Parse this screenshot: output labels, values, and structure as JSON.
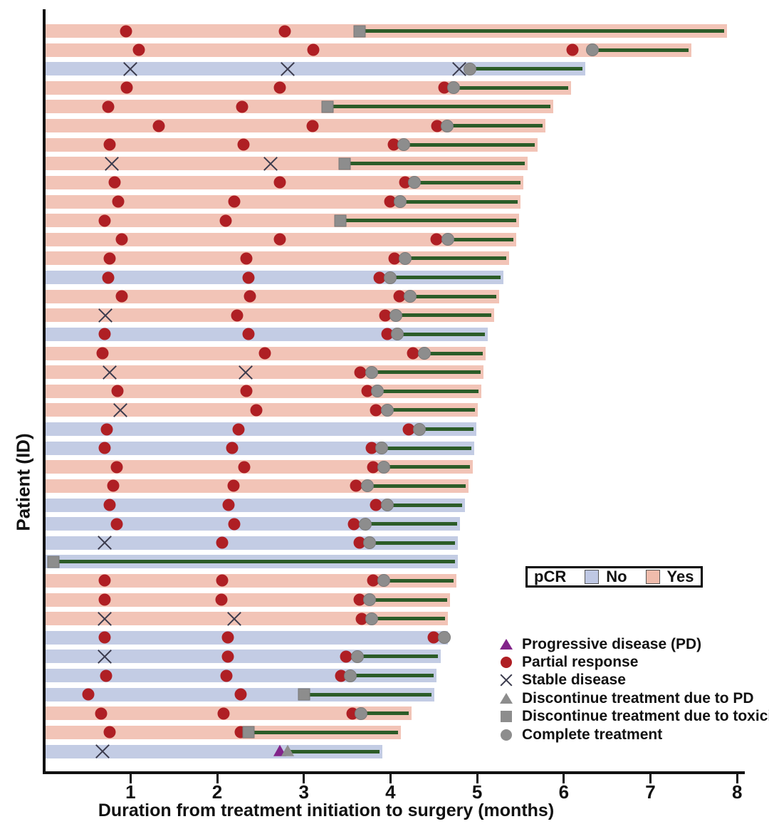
{
  "axes": {
    "x_title": "Duration from treatment initiation to surgery (months)",
    "y_title": "Patient (ID)",
    "x_ticks": [
      1,
      2,
      3,
      4,
      5,
      6,
      7,
      8
    ]
  },
  "pcr_legend": {
    "label": "pCR",
    "no_label": "No",
    "yes_label": "Yes"
  },
  "marker_legend": {
    "items": [
      {
        "icon": "purple-triangle-icon",
        "label": "Progressive disease (PD)"
      },
      {
        "icon": "red-circle-icon",
        "label": "Partial response"
      },
      {
        "icon": "x-cross-icon",
        "label": "Stable disease"
      },
      {
        "icon": "gray-triangle-icon",
        "label": "Discontinue treatment due to PD"
      },
      {
        "icon": "gray-square-icon",
        "label": "Discontinue treatment due to toxicity"
      },
      {
        "icon": "gray-circle-icon",
        "label": "Complete treatment"
      }
    ]
  },
  "colors": {
    "pcr_yes_bar": "#f2c4b7",
    "pcr_no_bar": "#c3cce4",
    "pcr_yes_swatch": "#f0bcac",
    "pcr_no_swatch": "#bfc8e4",
    "partial_response_red": "#af1f24",
    "marker_gray": "#8d8d8d",
    "progressive_purple": "#82248a",
    "post_treatment_line_green": "#2c5c28",
    "axis_black": "#111111"
  },
  "chart_data": {
    "type": "bar",
    "subtype": "horizontal-swimmer-plot",
    "title": "",
    "xlabel": "Duration from treatment initiation to surgery (months)",
    "ylabel": "Patient (ID)",
    "xlim": [
      0,
      8
    ],
    "x_ticks": [
      1,
      2,
      3,
      4,
      5,
      6,
      7,
      8
    ],
    "grid": false,
    "legend_position": "lower-right",
    "event_codes": {
      "pr": "partial_response (red circle)",
      "sd": "stable_disease (x cross)",
      "pd": "progressive_disease (purple triangle)",
      "dpd": "discontinue_treatment_due_to_PD (gray triangle)",
      "dtox": "discontinue_treatment_due_to_toxicity (gray square)",
      "ct": "complete_treatment (gray circle)"
    },
    "bar_meaning": "bar length = months from treatment initiation to surgery; green line = from treatment end/discontinuation to surgery; bar color = pCR status",
    "patients": [
      {
        "pcr": "Yes",
        "surgery": 7.88,
        "line_start": 3.64,
        "events": [
          [
            0.95,
            "pr"
          ],
          [
            2.78,
            "pr"
          ],
          [
            3.64,
            "dtox"
          ]
        ]
      },
      {
        "pcr": "Yes",
        "surgery": 7.47,
        "line_start": 6.33,
        "events": [
          [
            1.1,
            "pr"
          ],
          [
            3.11,
            "pr"
          ],
          [
            6.1,
            "pr"
          ],
          [
            6.33,
            "ct"
          ]
        ]
      },
      {
        "pcr": "No",
        "surgery": 6.25,
        "line_start": 4.92,
        "events": [
          [
            1.0,
            "sd"
          ],
          [
            2.81,
            "sd"
          ],
          [
            4.79,
            "sd"
          ],
          [
            4.92,
            "ct"
          ]
        ]
      },
      {
        "pcr": "Yes",
        "surgery": 6.08,
        "line_start": 4.73,
        "events": [
          [
            0.96,
            "pr"
          ],
          [
            2.72,
            "pr"
          ],
          [
            4.62,
            "pr"
          ],
          [
            4.73,
            "ct"
          ]
        ]
      },
      {
        "pcr": "Yes",
        "surgery": 5.88,
        "line_start": 3.27,
        "events": [
          [
            0.74,
            "pr"
          ],
          [
            2.29,
            "pr"
          ],
          [
            3.27,
            "dtox"
          ]
        ]
      },
      {
        "pcr": "Yes",
        "surgery": 5.79,
        "line_start": 4.65,
        "events": [
          [
            1.33,
            "pr"
          ],
          [
            3.1,
            "pr"
          ],
          [
            4.54,
            "pr"
          ],
          [
            4.65,
            "ct"
          ]
        ]
      },
      {
        "pcr": "Yes",
        "surgery": 5.7,
        "line_start": 4.15,
        "events": [
          [
            0.76,
            "pr"
          ],
          [
            2.3,
            "pr"
          ],
          [
            4.04,
            "pr"
          ],
          [
            4.15,
            "ct"
          ]
        ]
      },
      {
        "pcr": "Yes",
        "surgery": 5.58,
        "line_start": 3.47,
        "events": [
          [
            0.78,
            "sd"
          ],
          [
            2.62,
            "sd"
          ],
          [
            3.47,
            "dtox"
          ]
        ]
      },
      {
        "pcr": "Yes",
        "surgery": 5.53,
        "line_start": 4.28,
        "events": [
          [
            0.82,
            "pr"
          ],
          [
            2.72,
            "pr"
          ],
          [
            4.17,
            "pr"
          ],
          [
            4.28,
            "ct"
          ]
        ]
      },
      {
        "pcr": "Yes",
        "surgery": 5.5,
        "line_start": 4.11,
        "events": [
          [
            0.86,
            "pr"
          ],
          [
            2.2,
            "pr"
          ],
          [
            4.0,
            "pr"
          ],
          [
            4.11,
            "ct"
          ]
        ]
      },
      {
        "pcr": "Yes",
        "surgery": 5.48,
        "line_start": 3.42,
        "events": [
          [
            0.7,
            "pr"
          ],
          [
            2.1,
            "pr"
          ],
          [
            3.42,
            "dtox"
          ]
        ]
      },
      {
        "pcr": "Yes",
        "surgery": 5.45,
        "line_start": 4.66,
        "events": [
          [
            0.9,
            "pr"
          ],
          [
            2.72,
            "pr"
          ],
          [
            4.53,
            "pr"
          ],
          [
            4.66,
            "ct"
          ]
        ]
      },
      {
        "pcr": "Yes",
        "surgery": 5.37,
        "line_start": 4.17,
        "events": [
          [
            0.76,
            "pr"
          ],
          [
            2.34,
            "pr"
          ],
          [
            4.05,
            "pr"
          ],
          [
            4.17,
            "ct"
          ]
        ]
      },
      {
        "pcr": "No",
        "surgery": 5.3,
        "line_start": 4.0,
        "events": [
          [
            0.74,
            "pr"
          ],
          [
            2.36,
            "pr"
          ],
          [
            3.87,
            "pr"
          ],
          [
            4.0,
            "ct"
          ]
        ]
      },
      {
        "pcr": "Yes",
        "surgery": 5.25,
        "line_start": 4.23,
        "events": [
          [
            0.9,
            "pr"
          ],
          [
            2.38,
            "pr"
          ],
          [
            4.1,
            "pr"
          ],
          [
            4.23,
            "ct"
          ]
        ]
      },
      {
        "pcr": "Yes",
        "surgery": 5.2,
        "line_start": 4.06,
        "events": [
          [
            0.71,
            "sd"
          ],
          [
            2.23,
            "pr"
          ],
          [
            3.94,
            "pr"
          ],
          [
            4.06,
            "ct"
          ]
        ]
      },
      {
        "pcr": "No",
        "surgery": 5.12,
        "line_start": 4.08,
        "events": [
          [
            0.7,
            "pr"
          ],
          [
            2.36,
            "pr"
          ],
          [
            3.96,
            "pr"
          ],
          [
            4.08,
            "ct"
          ]
        ]
      },
      {
        "pcr": "Yes",
        "surgery": 5.1,
        "line_start": 4.39,
        "events": [
          [
            0.68,
            "pr"
          ],
          [
            2.55,
            "pr"
          ],
          [
            4.26,
            "pr"
          ],
          [
            4.39,
            "ct"
          ]
        ]
      },
      {
        "pcr": "Yes",
        "surgery": 5.07,
        "line_start": 3.78,
        "events": [
          [
            0.76,
            "sd"
          ],
          [
            2.33,
            "sd"
          ],
          [
            3.65,
            "pr"
          ],
          [
            3.78,
            "ct"
          ]
        ]
      },
      {
        "pcr": "Yes",
        "surgery": 5.05,
        "line_start": 3.85,
        "events": [
          [
            0.85,
            "pr"
          ],
          [
            2.34,
            "pr"
          ],
          [
            3.73,
            "pr"
          ],
          [
            3.85,
            "ct"
          ]
        ]
      },
      {
        "pcr": "Yes",
        "surgery": 5.01,
        "line_start": 3.96,
        "events": [
          [
            0.88,
            "sd"
          ],
          [
            2.45,
            "pr"
          ],
          [
            3.83,
            "pr"
          ],
          [
            3.96,
            "ct"
          ]
        ]
      },
      {
        "pcr": "No",
        "surgery": 4.99,
        "line_start": 4.33,
        "events": [
          [
            0.73,
            "pr"
          ],
          [
            2.25,
            "pr"
          ],
          [
            4.21,
            "pr"
          ],
          [
            4.33,
            "ct"
          ]
        ]
      },
      {
        "pcr": "No",
        "surgery": 4.97,
        "line_start": 3.9,
        "events": [
          [
            0.7,
            "pr"
          ],
          [
            2.17,
            "pr"
          ],
          [
            3.78,
            "pr"
          ],
          [
            3.9,
            "ct"
          ]
        ]
      },
      {
        "pcr": "Yes",
        "surgery": 4.95,
        "line_start": 3.92,
        "events": [
          [
            0.84,
            "pr"
          ],
          [
            2.31,
            "pr"
          ],
          [
            3.8,
            "pr"
          ],
          [
            3.92,
            "ct"
          ]
        ]
      },
      {
        "pcr": "Yes",
        "surgery": 4.9,
        "line_start": 3.73,
        "events": [
          [
            0.8,
            "pr"
          ],
          [
            2.19,
            "pr"
          ],
          [
            3.6,
            "pr"
          ],
          [
            3.73,
            "ct"
          ]
        ]
      },
      {
        "pcr": "No",
        "surgery": 4.86,
        "line_start": 3.96,
        "events": [
          [
            0.76,
            "pr"
          ],
          [
            2.13,
            "pr"
          ],
          [
            3.83,
            "pr"
          ],
          [
            3.96,
            "ct"
          ]
        ]
      },
      {
        "pcr": "No",
        "surgery": 4.8,
        "line_start": 3.71,
        "events": [
          [
            0.84,
            "pr"
          ],
          [
            2.2,
            "pr"
          ],
          [
            3.58,
            "pr"
          ],
          [
            3.71,
            "ct"
          ]
        ]
      },
      {
        "pcr": "No",
        "surgery": 4.78,
        "line_start": 3.76,
        "events": [
          [
            0.7,
            "sd"
          ],
          [
            2.06,
            "pr"
          ],
          [
            3.64,
            "pr"
          ],
          [
            3.76,
            "ct"
          ]
        ]
      },
      {
        "pcr": "No",
        "surgery": 4.78,
        "line_start": 0.11,
        "events": [
          [
            0.11,
            "dtox"
          ]
        ]
      },
      {
        "pcr": "Yes",
        "surgery": 4.76,
        "line_start": 3.92,
        "events": [
          [
            0.7,
            "pr"
          ],
          [
            2.06,
            "pr"
          ],
          [
            3.8,
            "pr"
          ],
          [
            3.92,
            "ct"
          ]
        ]
      },
      {
        "pcr": "Yes",
        "surgery": 4.69,
        "line_start": 3.76,
        "events": [
          [
            0.7,
            "pr"
          ],
          [
            2.05,
            "pr"
          ],
          [
            3.64,
            "pr"
          ],
          [
            3.76,
            "ct"
          ]
        ]
      },
      {
        "pcr": "Yes",
        "surgery": 4.66,
        "line_start": 3.78,
        "events": [
          [
            0.7,
            "sd"
          ],
          [
            2.2,
            "sd"
          ],
          [
            3.67,
            "pr"
          ],
          [
            3.78,
            "ct"
          ]
        ]
      },
      {
        "pcr": "No",
        "surgery": 4.66,
        "line_start": 4.62,
        "events": [
          [
            0.7,
            "pr"
          ],
          [
            2.12,
            "pr"
          ],
          [
            4.5,
            "pr"
          ],
          [
            4.62,
            "ct"
          ]
        ]
      },
      {
        "pcr": "No",
        "surgery": 4.58,
        "line_start": 3.62,
        "events": [
          [
            0.7,
            "sd"
          ],
          [
            2.12,
            "pr"
          ],
          [
            3.49,
            "pr"
          ],
          [
            3.62,
            "ct"
          ]
        ]
      },
      {
        "pcr": "No",
        "surgery": 4.53,
        "line_start": 3.54,
        "events": [
          [
            0.72,
            "pr"
          ],
          [
            2.11,
            "pr"
          ],
          [
            3.43,
            "pr"
          ],
          [
            3.54,
            "ct"
          ]
        ]
      },
      {
        "pcr": "No",
        "surgery": 4.51,
        "line_start": 3.0,
        "events": [
          [
            0.51,
            "pr"
          ],
          [
            2.27,
            "pr"
          ],
          [
            3.0,
            "dtox"
          ]
        ]
      },
      {
        "pcr": "Yes",
        "surgery": 4.24,
        "line_start": 3.66,
        "events": [
          [
            0.66,
            "pr"
          ],
          [
            2.07,
            "pr"
          ],
          [
            3.56,
            "pr"
          ],
          [
            3.66,
            "ct"
          ]
        ]
      },
      {
        "pcr": "Yes",
        "surgery": 4.12,
        "line_start": 2.36,
        "events": [
          [
            0.76,
            "pr"
          ],
          [
            2.27,
            "pr"
          ],
          [
            2.36,
            "dtox"
          ]
        ]
      },
      {
        "pcr": "No",
        "surgery": 3.91,
        "line_start": 2.81,
        "events": [
          [
            0.68,
            "sd"
          ],
          [
            2.72,
            "pd"
          ],
          [
            2.81,
            "dpd"
          ]
        ]
      }
    ]
  }
}
